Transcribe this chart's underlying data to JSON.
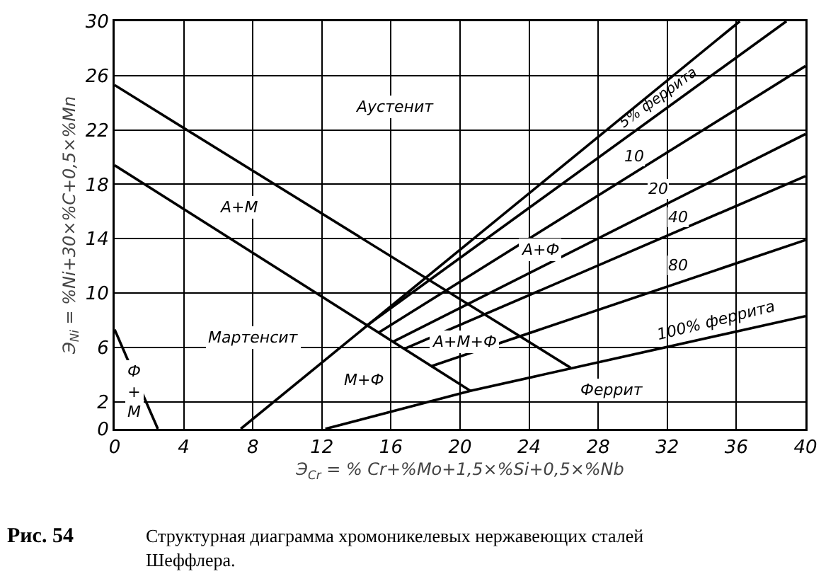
{
  "chart_data": {
    "type": "line",
    "xlabel": "Э$_{Cr}$ = % Cr+%Mo+1,5×%Si+0,5×%Nb",
    "ylabel": "Э$_{Ni}$ = %Ni+30×%C+0,5×%Mn",
    "xlim": [
      0,
      40
    ],
    "xticks": [
      0,
      4,
      8,
      12,
      16,
      20,
      24,
      28,
      32,
      36,
      40
    ],
    "ylim": [
      0,
      30
    ],
    "yticks": [
      0,
      2,
      6,
      10,
      14,
      18,
      22,
      26,
      30
    ],
    "grid": true,
    "marker": "none",
    "line_style": "solid",
    "series": [
      {
        "color": "#000000",
        "x": [
          0,
          26.4
        ],
        "values": [
          25.3,
          4.5
        ]
      },
      {
        "color": "#000000",
        "x": [
          0,
          20.6
        ],
        "values": [
          19.4,
          2.8
        ]
      },
      {
        "color": "#000000",
        "x": [
          0,
          2.5
        ],
        "values": [
          7.3,
          0
        ]
      },
      {
        "color": "#000000",
        "x": [
          7.3,
          36.2
        ],
        "values": [
          0,
          30
        ]
      },
      {
        "color": "#000000",
        "x": [
          14.6,
          38.9
        ],
        "values": [
          7.6,
          30
        ]
      },
      {
        "color": "#000000",
        "x": [
          15.3,
          40
        ],
        "values": [
          7.1,
          26.7
        ]
      },
      {
        "color": "#000000",
        "x": [
          16.1,
          40
        ],
        "values": [
          6.4,
          21.7
        ]
      },
      {
        "color": "#000000",
        "x": [
          16.8,
          40
        ],
        "values": [
          5.9,
          18.6
        ]
      },
      {
        "color": "#000000",
        "x": [
          18.3,
          40
        ],
        "values": [
          4.6,
          13.9
        ]
      },
      {
        "color": "#000000",
        "x": [
          12.2,
          20.6,
          40
        ],
        "values": [
          0,
          2.8,
          8.3
        ]
      }
    ],
    "annotations": [
      "Аустенит",
      "А+М",
      "Мартенсит",
      "М+Ф",
      "Ф\n+\nМ",
      "А+Ф",
      "А+М+Ф",
      "Феррит",
      "5% феррита",
      {
        "text": "10",
        "x": 30.1,
        "y": 20.1
      },
      {
        "text": "20",
        "x": 31.5,
        "y": 17.7
      },
      {
        "text": "40",
        "x": 32.6,
        "y": 15.6
      },
      {
        "text": "80",
        "x": 32.6,
        "y": 12.0
      },
      "100% феррита",
      "Рис. 54",
      "Структурная диаграмма хромоникелевых нержавеющих сталей\nШеффлера."
    ]
  }
}
